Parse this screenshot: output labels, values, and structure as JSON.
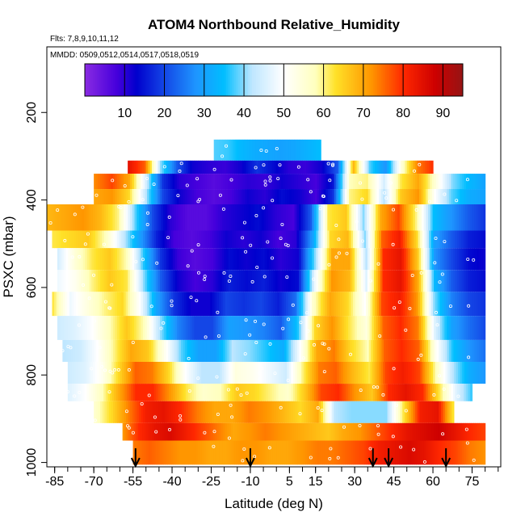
{
  "chart_data": {
    "type": "heatmap",
    "title": "ATOM4 Northbound Relative_Humidity",
    "subtitle_flights": "Flts: 7,8,9,10,11,12",
    "subtitle_dates": "MMDD: 0509,0512,0514,0517,0518,0519",
    "xlabel": "Latitude (deg N)",
    "ylabel": "PSXC (mbar)",
    "xlim": [
      -88,
      86
    ],
    "ylim": [
      1010,
      50
    ],
    "x_tick_labels": [
      "-85",
      "-70",
      "-55",
      "-40",
      "-25",
      "-10",
      "5",
      "15",
      "30",
      "45",
      "60",
      "75"
    ],
    "x_tick_values": [
      -85,
      -70,
      -55,
      -40,
      -25,
      -10,
      5,
      15,
      30,
      45,
      60,
      75
    ],
    "x_minor_ticks": [
      -85,
      -80,
      -75,
      -70,
      -65,
      -60,
      -55,
      -50,
      -45,
      -40,
      -35,
      -30,
      -25,
      -20,
      -15,
      -10,
      -5,
      0,
      5,
      10,
      15,
      20,
      25,
      30,
      35,
      40,
      45,
      50,
      55,
      60,
      65,
      70,
      75,
      80,
      85
    ],
    "y_tick_labels": [
      "200",
      "400",
      "600",
      "800",
      "1000"
    ],
    "y_tick_values": [
      200,
      400,
      600,
      800,
      1000
    ],
    "colorbar": {
      "range": [
        0,
        95
      ],
      "tick_labels": [
        "10",
        "20",
        "30",
        "40",
        "50",
        "60",
        "70",
        "80",
        "90"
      ],
      "tick_values": [
        10,
        20,
        30,
        40,
        50,
        60,
        70,
        80,
        90
      ]
    },
    "arrow_latitudes": [
      -54,
      -10,
      37,
      43,
      65
    ],
    "layers": [
      {
        "p_top": 262,
        "p_bot": 310,
        "lat_start": -24,
        "lat_end": 17,
        "rh": [
          38,
          37,
          34,
          32,
          31,
          30,
          31,
          33,
          35
        ]
      },
      {
        "p_top": 310,
        "p_bot": 340,
        "lat_start": -57,
        "lat_end": 60,
        "rh": [
          84,
          76,
          40,
          22,
          12,
          10,
          9,
          12,
          18,
          14,
          10,
          9,
          12,
          22,
          68,
          38,
          28,
          55,
          74,
          80
        ]
      },
      {
        "p_top": 340,
        "p_bot": 375,
        "lat_start": -70,
        "lat_end": 80,
        "rh": [
          73,
          78,
          70,
          45,
          18,
          10,
          8,
          6,
          8,
          10,
          9,
          12,
          10,
          8,
          15,
          58,
          60,
          45,
          62,
          70,
          55,
          40,
          34,
          30
        ]
      },
      {
        "p_top": 375,
        "p_bot": 410,
        "lat_start": -70,
        "lat_end": 80,
        "rh": [
          70,
          72,
          64,
          42,
          20,
          12,
          8,
          6,
          8,
          12,
          10,
          14,
          12,
          8,
          18,
          60,
          64,
          42,
          66,
          72,
          50,
          38,
          32,
          30
        ]
      },
      {
        "p_top": 410,
        "p_bot": 470,
        "lat_start": -88,
        "lat_end": 80,
        "rh": [
          68,
          70,
          72,
          68,
          60,
          38,
          20,
          10,
          6,
          6,
          10,
          12,
          14,
          10,
          8,
          22,
          62,
          66,
          40,
          70,
          78,
          60,
          35,
          28,
          22,
          18
        ]
      },
      {
        "p_top": 470,
        "p_bot": 510,
        "lat_start": -86,
        "lat_end": 80,
        "rh": [
          62,
          64,
          66,
          58,
          44,
          30,
          16,
          8,
          6,
          8,
          12,
          10,
          12,
          8,
          10,
          30,
          64,
          68,
          40,
          76,
          82,
          64,
          30,
          22,
          16,
          14
        ]
      },
      {
        "p_top": 510,
        "p_bot": 560,
        "lat_start": -84,
        "lat_end": 80,
        "rh": [
          45,
          55,
          62,
          66,
          58,
          36,
          18,
          9,
          6,
          8,
          14,
          12,
          14,
          10,
          12,
          40,
          70,
          70,
          42,
          80,
          84,
          66,
          28,
          20,
          14,
          12
        ]
      },
      {
        "p_top": 560,
        "p_bot": 610,
        "lat_start": -84,
        "lat_end": 80,
        "rh": [
          48,
          52,
          60,
          66,
          62,
          40,
          22,
          12,
          8,
          10,
          16,
          14,
          16,
          12,
          14,
          48,
          72,
          68,
          46,
          80,
          84,
          70,
          34,
          22,
          16,
          14
        ]
      },
      {
        "p_top": 610,
        "p_bot": 665,
        "lat_start": -86,
        "lat_end": 80,
        "rh": [
          62,
          48,
          54,
          60,
          64,
          50,
          30,
          18,
          12,
          12,
          20,
          18,
          20,
          16,
          24,
          56,
          70,
          64,
          50,
          78,
          82,
          72,
          40,
          26,
          20,
          18
        ]
      },
      {
        "p_top": 665,
        "p_bot": 720,
        "lat_start": -84,
        "lat_end": 80,
        "rh": [
          44,
          46,
          50,
          58,
          66,
          58,
          40,
          26,
          20,
          20,
          30,
          28,
          26,
          22,
          36,
          64,
          72,
          62,
          54,
          76,
          80,
          74,
          46,
          30,
          24,
          20
        ]
      },
      {
        "p_top": 720,
        "p_bot": 770,
        "lat_start": -82,
        "lat_end": 80,
        "rh": [
          42,
          44,
          50,
          60,
          70,
          66,
          52,
          38,
          30,
          30,
          42,
          40,
          36,
          32,
          50,
          70,
          74,
          64,
          58,
          76,
          80,
          76,
          52,
          36,
          28,
          24
        ]
      },
      {
        "p_top": 770,
        "p_bot": 820,
        "lat_start": -80,
        "lat_end": 80,
        "rh": [
          44,
          46,
          52,
          64,
          76,
          74,
          64,
          50,
          42,
          42,
          54,
          52,
          48,
          44,
          60,
          74,
          76,
          68,
          62,
          78,
          82,
          78,
          58,
          42,
          32,
          28
        ]
      },
      {
        "p_top": 820,
        "p_bot": 860,
        "lat_start": -80,
        "lat_end": 75,
        "rh": [
          46,
          50,
          58,
          70,
          80,
          80,
          72,
          62,
          56,
          58,
          66,
          64,
          60,
          56,
          66,
          78,
          80,
          72,
          66,
          80,
          84,
          80,
          62,
          46,
          36
        ]
      },
      {
        "p_top": 860,
        "p_bot": 910,
        "lat_start": -70,
        "lat_end": 68,
        "rh": [
          56,
          64,
          74,
          82,
          84,
          80,
          74,
          70,
          70,
          74,
          72,
          68,
          64,
          70,
          42,
          40,
          40,
          40,
          62,
          82,
          84,
          60
        ]
      },
      {
        "p_top": 910,
        "p_bot": 950,
        "lat_start": -59,
        "lat_end": 80,
        "rh": [
          72,
          80,
          84,
          86,
          82,
          78,
          74,
          70,
          72,
          74,
          72,
          70,
          68,
          66,
          70,
          72,
          76,
          80,
          84,
          86,
          88,
          84,
          80,
          78
        ]
      },
      {
        "p_top": 950,
        "p_bot": 1005,
        "lat_start": -55,
        "lat_end": 80,
        "rh": [
          74,
          76,
          74,
          72,
          72,
          70,
          70,
          72,
          72,
          70,
          70,
          72,
          74,
          74,
          76,
          78,
          82,
          84,
          86,
          84,
          80,
          78,
          74,
          72
        ]
      }
    ]
  }
}
